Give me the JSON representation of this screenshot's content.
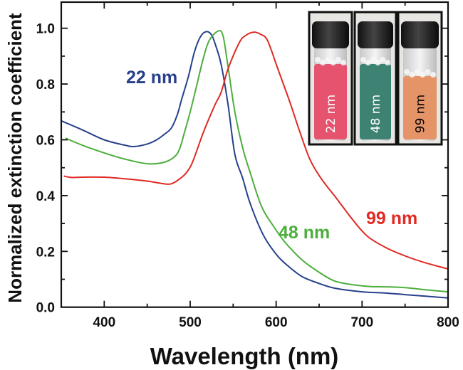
{
  "chart_data": {
    "type": "line",
    "title": "",
    "xlabel": "Wavelength (nm)",
    "ylabel": "Normalized extinction coefficient",
    "xlim": [
      350,
      800
    ],
    "ylim": [
      0,
      1.1
    ],
    "xticks": [
      400,
      500,
      600,
      700,
      800
    ],
    "xtick_labels": [
      "400",
      "500",
      "600",
      "700",
      "800"
    ],
    "yticks": [
      0.0,
      0.2,
      0.4,
      0.6,
      0.8,
      1.0
    ],
    "ytick_labels": [
      "0.0",
      "0.2",
      "0.4",
      "0.6",
      "0.8",
      "1.0"
    ],
    "grid": false,
    "legend": "none (series labeled inline)",
    "series": [
      {
        "name": "22 nm",
        "color": "#27408b",
        "x": [
          350,
          375,
          400,
          425,
          435,
          450,
          461,
          470,
          478,
          485,
          490,
          498,
          505,
          512,
          519,
          525,
          530,
          536,
          544,
          552,
          561,
          570,
          585,
          600,
          613,
          630,
          650,
          668,
          700,
          726,
          750,
          775,
          800
        ],
        "y": [
          0.668,
          0.635,
          0.6,
          0.58,
          0.576,
          0.585,
          0.6,
          0.62,
          0.642,
          0.69,
          0.744,
          0.828,
          0.915,
          0.97,
          0.988,
          0.975,
          0.935,
          0.871,
          0.727,
          0.548,
          0.463,
          0.37,
          0.259,
          0.19,
          0.15,
          0.11,
          0.085,
          0.068,
          0.055,
          0.051,
          0.045,
          0.039,
          0.033
        ]
      },
      {
        "name": "48 nm",
        "color": "#4cae3c",
        "x": [
          355,
          375,
          400,
          425,
          451,
          470,
          482,
          488,
          494,
          500,
          507,
          515,
          522,
          532,
          538,
          544,
          552,
          561,
          569,
          583,
          597,
          610,
          630,
          650,
          668,
          690,
          710,
          726,
          750,
          775,
          800
        ],
        "y": [
          0.606,
          0.58,
          0.553,
          0.53,
          0.514,
          0.52,
          0.54,
          0.57,
          0.634,
          0.7,
          0.787,
          0.889,
          0.955,
          0.989,
          0.975,
          0.863,
          0.7,
          0.572,
          0.49,
          0.361,
          0.29,
          0.234,
          0.17,
          0.125,
          0.094,
          0.08,
          0.074,
          0.073,
          0.07,
          0.062,
          0.055
        ]
      },
      {
        "name": "99 nm",
        "color": "#e02a24",
        "x": [
          353,
          362,
          375,
          400,
          425,
          450,
          473,
          480,
          486,
          495,
          503,
          515,
          528,
          536,
          544,
          557,
          565,
          574,
          582,
          590,
          602,
          615,
          627,
          639,
          652,
          671,
          690,
          707,
          730,
          754,
          775,
          800
        ],
        "y": [
          0.47,
          0.465,
          0.466,
          0.466,
          0.46,
          0.452,
          0.441,
          0.445,
          0.456,
          0.48,
          0.522,
          0.624,
          0.72,
          0.77,
          0.854,
          0.948,
          0.975,
          0.986,
          0.978,
          0.956,
          0.854,
          0.744,
          0.634,
          0.532,
          0.463,
          0.387,
          0.31,
          0.252,
          0.21,
          0.179,
          0.158,
          0.137
        ]
      }
    ],
    "annotations": [
      "22 nm",
      "48 nm",
      "99 nm"
    ]
  },
  "inset": {
    "vials": [
      {
        "label": "22 nm",
        "liquid_color": "#e5536f",
        "label_color": "#ffffff"
      },
      {
        "label": "48 nm",
        "liquid_color": "#3d8272",
        "label_color": "#ffffff"
      },
      {
        "label": "99 nm",
        "liquid_color": "#e59468",
        "label_color": "#000000"
      }
    ]
  }
}
